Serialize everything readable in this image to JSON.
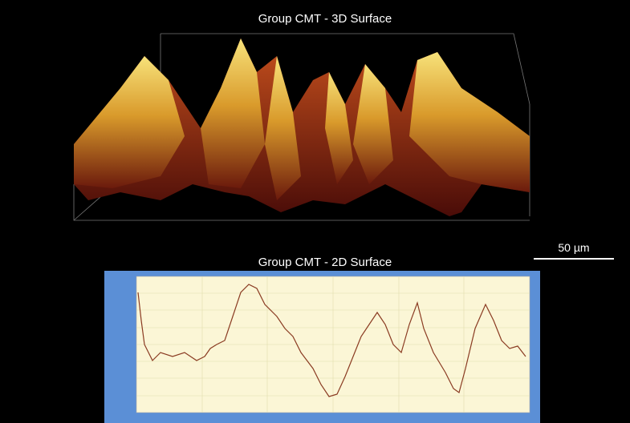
{
  "figure": {
    "surface_3d": {
      "title": "Group CMT - 3D Surface"
    },
    "scale_bar": {
      "label": "50 µm"
    },
    "surface_2d": {
      "title": "Group CMT - 2D Surface"
    }
  }
}
